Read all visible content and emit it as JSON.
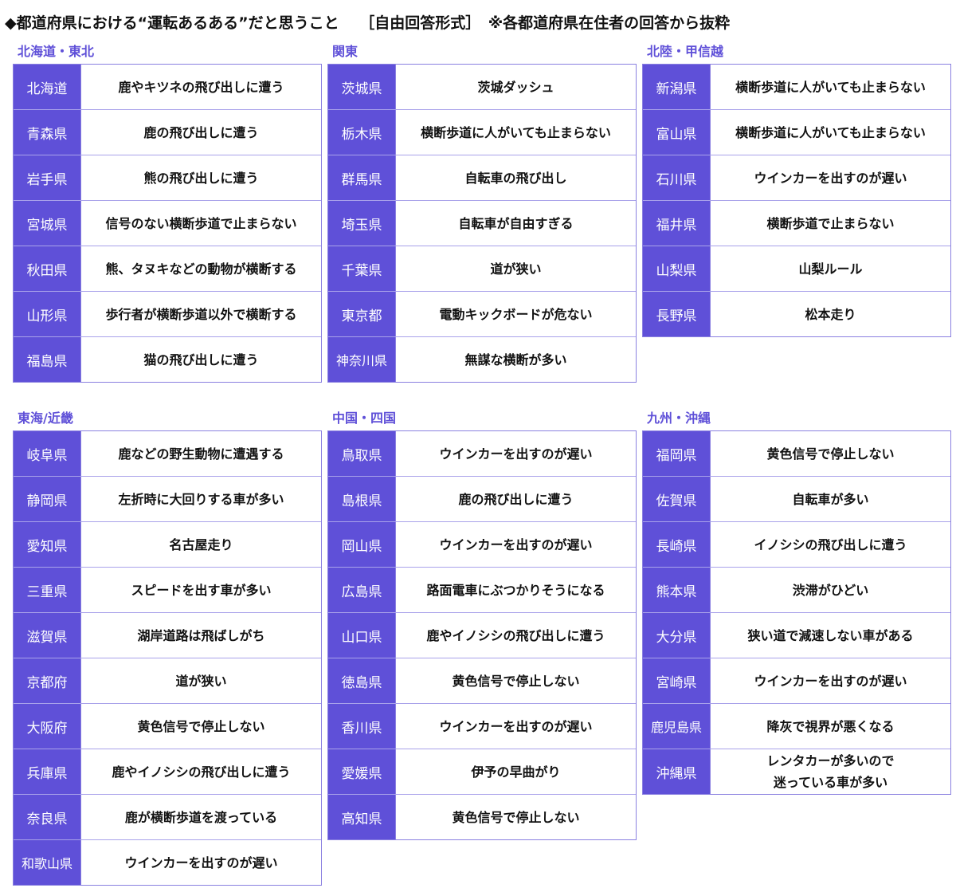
{
  "title": "◆都道府県における“運転あるある”だと思うこと　 ［自由回答形式］　※各都道府県在住者の回答から抜粋",
  "sections": [
    {
      "label": "北海道・東北",
      "rows": [
        [
          "北海道",
          "鹿やキツネの飛び出しに遭う"
        ],
        [
          "青森県",
          "鹿の飛び出しに遭う"
        ],
        [
          "岩手県",
          "熊の飛び出しに遭う"
        ],
        [
          "宮城県",
          "信号のない横断歩道で止まらない"
        ],
        [
          "秋田県",
          "熊、タヌキなどの動物が横断する"
        ],
        [
          "山形県",
          "歩行者が横断歩道以外で横断する"
        ],
        [
          "福島県",
          "猫の飛び出しに遭う"
        ]
      ]
    },
    {
      "label": "関東",
      "rows": [
        [
          "茨城県",
          "茨城ダッシュ"
        ],
        [
          "栃木県",
          "横断歩道に人がいても止まらない"
        ],
        [
          "群馬県",
          "自転車の飛び出し"
        ],
        [
          "埼玉県",
          "自転車が自由すぎる"
        ],
        [
          "千葉県",
          "道が狭い"
        ],
        [
          "東京都",
          "電動キックボードが危ない"
        ],
        [
          "神奈川県",
          "無謀な横断が多い"
        ]
      ]
    },
    {
      "label": "北陸・甲信越",
      "rows": [
        [
          "新潟県",
          "横断歩道に人がいても止まらない"
        ],
        [
          "富山県",
          "横断歩道に人がいても止まらない"
        ],
        [
          "石川県",
          "ウインカーを出すのが遅い"
        ],
        [
          "福井県",
          "横断歩道で止まらない"
        ],
        [
          "山梨県",
          "山梨ルール"
        ],
        [
          "長野県",
          "松本走り"
        ]
      ]
    },
    {
      "label": "東海/近畿",
      "rows": [
        [
          "岐阜県",
          "鹿などの野生動物に遭遇する"
        ],
        [
          "静岡県",
          "左折時に大回りする車が多い"
        ],
        [
          "愛知県",
          "名古屋走り"
        ],
        [
          "三重県",
          "スピードを出す車が多い"
        ],
        [
          "滋賀県",
          "湖岸道路は飛ばしがち"
        ],
        [
          "京都府",
          "道が狭い"
        ],
        [
          "大阪府",
          "黄色信号で停止しない"
        ],
        [
          "兵庫県",
          "鹿やイノシシの飛び出しに遭う"
        ],
        [
          "奈良県",
          "鹿が横断歩道を渡っている"
        ],
        [
          "和歌山県",
          "ウインカーを出すのが遅い"
        ]
      ]
    },
    {
      "label": "中国・四国",
      "rows": [
        [
          "鳥取県",
          "ウインカーを出すのが遅い"
        ],
        [
          "島根県",
          "鹿の飛び出しに遭う"
        ],
        [
          "岡山県",
          "ウインカーを出すのが遅い"
        ],
        [
          "広島県",
          "路面電車にぶつかりそうになる"
        ],
        [
          "山口県",
          "鹿やイノシシの飛び出しに遭う"
        ],
        [
          "徳島県",
          "黄色信号で停止しない"
        ],
        [
          "香川県",
          "ウインカーを出すのが遅い"
        ],
        [
          "愛媛県",
          "伊予の早曲がり"
        ],
        [
          "高知県",
          "黄色信号で停止しない"
        ]
      ]
    },
    {
      "label": "九州・沖縄",
      "rows": [
        [
          "福岡県",
          "黄色信号で停止しない"
        ],
        [
          "佐賀県",
          "自転車が多い"
        ],
        [
          "長崎県",
          "イノシシの飛び出しに遭う"
        ],
        [
          "熊本県",
          "渋滞がひどい"
        ],
        [
          "大分県",
          "狭い道で減速しない車がある"
        ],
        [
          "宮崎県",
          "ウインカーを出すのが遅い"
        ],
        [
          "鹿児島県",
          "降灰で視界が悪くなる"
        ],
        [
          "沖縄県",
          "レンタカーが多いので\n迷っている車が多い"
        ]
      ]
    }
  ],
  "colors": {
    "accent": "#5f50d8",
    "border": "#8a80e0"
  }
}
